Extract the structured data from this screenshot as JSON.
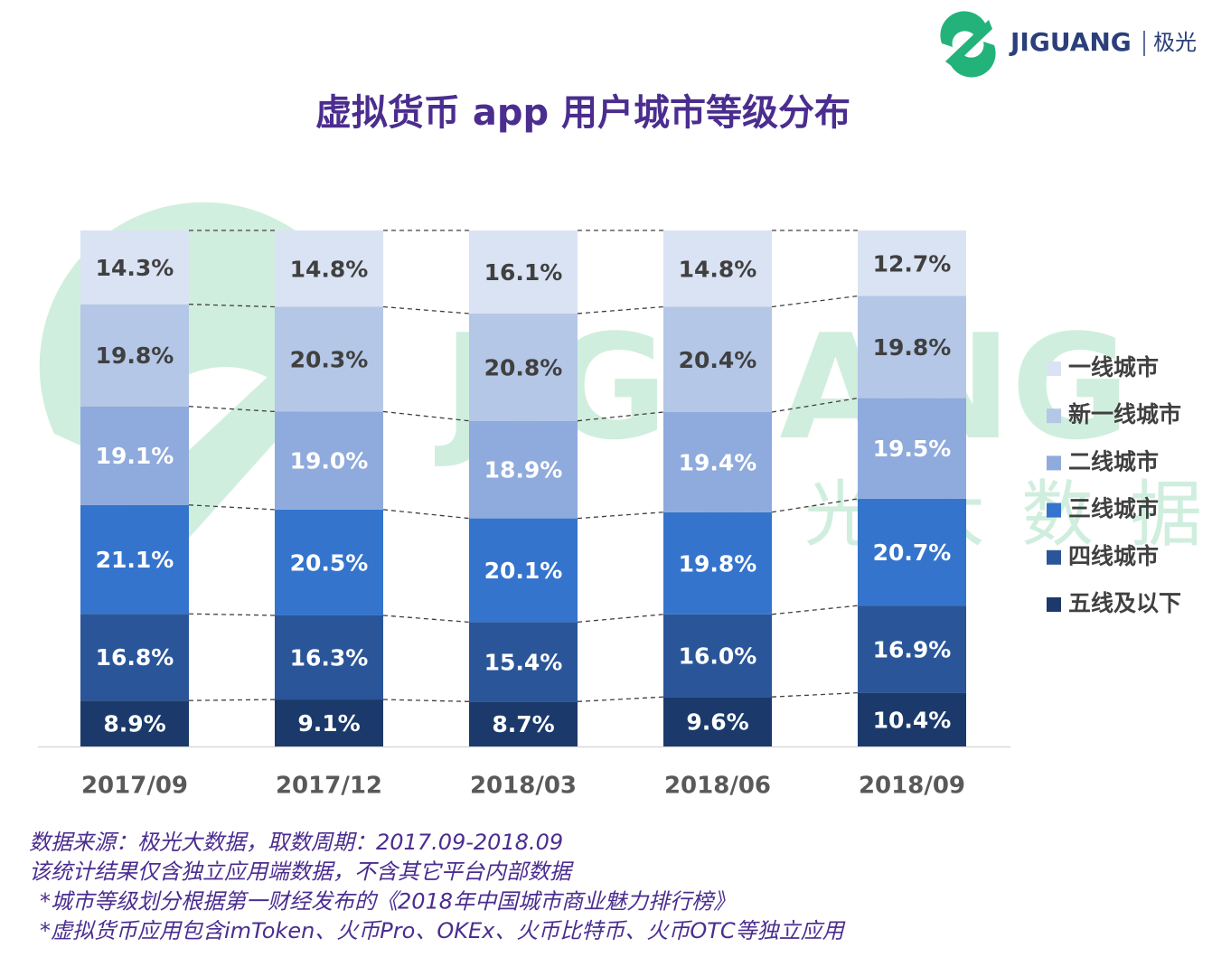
{
  "brand": {
    "name": "JIGUANG",
    "name_cn": "极光"
  },
  "watermark": {
    "name": "JIGUANG",
    "subtitle": "极光大数据"
  },
  "chart_data": {
    "type": "stacked_bar",
    "title": "虚拟货币 app 用户城市等级分布",
    "categories": [
      "2017/09",
      "2017/12",
      "2018/03",
      "2018/06",
      "2018/09"
    ],
    "series": [
      {
        "name": "五线及以下",
        "color": "#1b3a6b",
        "values": [
          8.9,
          9.1,
          8.7,
          9.6,
          10.4
        ],
        "value_labels": [
          "8.9%",
          "9.1%",
          "8.7%",
          "9.6%",
          "10.4%"
        ]
      },
      {
        "name": "四线城市",
        "color": "#2a5699",
        "values": [
          16.8,
          16.3,
          15.4,
          16.0,
          16.9
        ],
        "value_labels": [
          "16.8%",
          "16.3%",
          "15.4%",
          "16.0%",
          "16.9%"
        ]
      },
      {
        "name": "三线城市",
        "color": "#3574cc",
        "values": [
          21.1,
          20.5,
          20.1,
          19.8,
          20.7
        ],
        "value_labels": [
          "21.1%",
          "20.5%",
          "20.1%",
          "19.8%",
          "20.7%"
        ]
      },
      {
        "name": "二线城市",
        "color": "#8faadc",
        "values": [
          19.1,
          19.0,
          18.9,
          19.4,
          19.5
        ],
        "value_labels": [
          "19.1%",
          "19.0%",
          "18.9%",
          "19.4%",
          "19.5%"
        ]
      },
      {
        "name": "新一线城市",
        "color": "#b4c7e7",
        "values": [
          19.8,
          20.3,
          20.8,
          20.4,
          19.8
        ],
        "value_labels": [
          "19.8%",
          "20.3%",
          "20.8%",
          "20.4%",
          "19.8%"
        ]
      },
      {
        "name": "一线城市",
        "color": "#dae3f3",
        "values": [
          14.3,
          14.8,
          16.1,
          14.8,
          12.7
        ],
        "value_labels": [
          "14.3%",
          "14.8%",
          "16.1%",
          "14.8%",
          "12.7%"
        ]
      }
    ],
    "notes": [
      "数据来源：极光大数据，取数周期：2017.09-2018.09",
      "该统计结果仅含独立应用端数据，不含其它平台内部数据",
      "*城市等级划分根据第一财经发布的《2018年中国城市商业魅力排行榜》",
      "*虚拟货币应用包含imToken、火币Pro、OKEx、火币比特币、火币OTC等独立应用"
    ]
  }
}
